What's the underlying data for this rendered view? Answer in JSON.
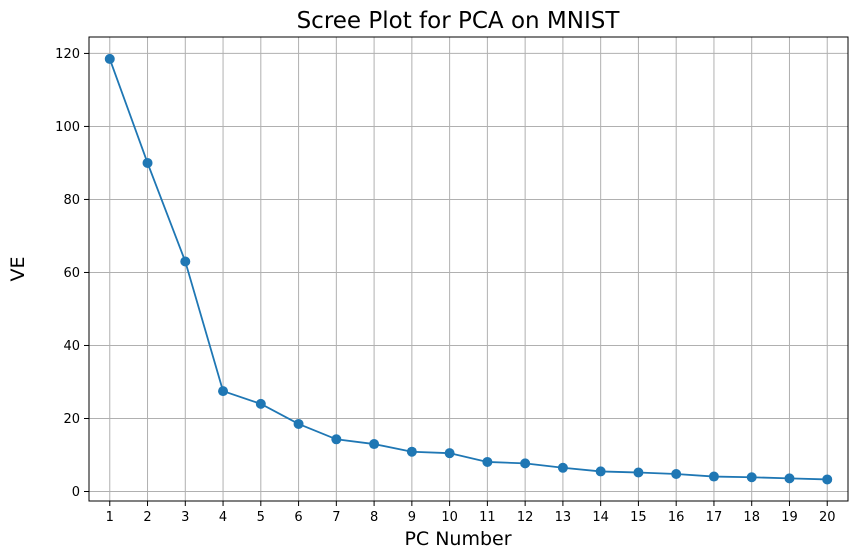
{
  "chart_data": {
    "type": "line",
    "title": "Scree Plot for PCA on MNIST",
    "xlabel": "PC Number",
    "ylabel": "VE",
    "x": [
      1,
      2,
      3,
      4,
      5,
      6,
      7,
      8,
      9,
      10,
      11,
      12,
      13,
      14,
      15,
      16,
      17,
      18,
      19,
      20
    ],
    "x_tick_labels": [
      "1",
      "2",
      "3",
      "4",
      "5",
      "6",
      "7",
      "8",
      "9",
      "10",
      "11",
      "12",
      "13",
      "14",
      "15",
      "16",
      "17",
      "18",
      "19",
      "20"
    ],
    "y_ticks": [
      0,
      20,
      40,
      60,
      80,
      100,
      120
    ],
    "y_tick_labels": [
      "0",
      "20",
      "40",
      "60",
      "80",
      "100",
      "120"
    ],
    "series": [
      {
        "values": [
          118.5,
          90.0,
          63.0,
          27.5,
          24.0,
          18.5,
          14.3,
          13.0,
          10.9,
          10.5,
          8.1,
          7.7,
          6.5,
          5.5,
          5.2,
          4.8,
          4.1,
          3.9,
          3.6,
          3.3
        ],
        "color": "#1f77b4",
        "marker": "circle"
      }
    ],
    "xlim": [
      0.45,
      20.55
    ],
    "ylim": [
      -2.6,
      124.5
    ],
    "grid": true
  }
}
